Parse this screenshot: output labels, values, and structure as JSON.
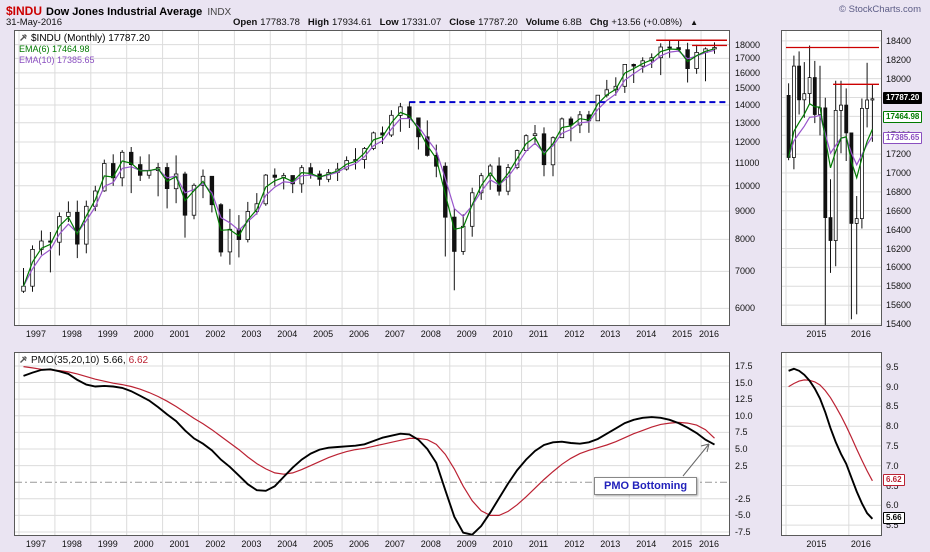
{
  "header": {
    "symbol": "$INDU",
    "name": "Dow Jones Industrial Average",
    "exchange": "INDX",
    "credit": "© StockCharts.com",
    "date": "31-May-2016",
    "quote": {
      "open_label": "Open",
      "open": "17783.78",
      "high_label": "High",
      "high": "17934.61",
      "low_label": "Low",
      "low": "17331.07",
      "close_label": "Close",
      "close": "17787.20",
      "volume_label": "Volume",
      "volume": "6.8B",
      "chg_label": "Chg",
      "chg": "+13.56 (+0.08%)",
      "chg_arrow": "▲"
    }
  },
  "price_panel": {
    "legend_title": "$INDU (Monthly) 17787.20",
    "legend_ema6": "EMA(6) 17464.98",
    "legend_ema10": "EMA(10) 17385.65"
  },
  "pmo_panel": {
    "label": "PMO(35,20,10)",
    "value_pmo": "5.66,",
    "value_signal": "6.62",
    "callout": "PMO Bottoming"
  },
  "inset_price": {
    "tag_close": "17787.20",
    "tag_ema6": "17464.98",
    "tag_ema10": "17385.65"
  },
  "inset_pmo": {
    "tag_signal": "6.62",
    "tag_pmo": "5.66"
  },
  "chart_data": [
    {
      "id": "price-main",
      "type": "candlestick",
      "scale": "log",
      "title": "$INDU (Monthly) 17787.20",
      "x_years": [
        "1997",
        "1998",
        "1999",
        "2000",
        "2001",
        "2002",
        "2003",
        "2004",
        "2005",
        "2006",
        "2007",
        "2008",
        "2009",
        "2010",
        "2011",
        "2012",
        "2013",
        "2014",
        "2015",
        "2016"
      ],
      "bars_per_year": 4,
      "ylim": [
        5600,
        19050
      ],
      "y_ticks": [
        "18000",
        "17000",
        "16000",
        "15000",
        "14000",
        "13000",
        "12000",
        "11000",
        "10000",
        "9000",
        "8000",
        "7000",
        "6000"
      ],
      "open_first": 6448,
      "bars": [
        [
          7100,
          6400,
          6583
        ],
        [
          7800,
          6430,
          7673
        ],
        [
          8300,
          7500,
          7945
        ],
        [
          8250,
          6970,
          7908
        ],
        [
          8950,
          7480,
          8800
        ],
        [
          9370,
          8600,
          8952
        ],
        [
          9400,
          7400,
          7843
        ],
        [
          9400,
          7550,
          9181
        ],
        [
          10000,
          9000,
          9786
        ],
        [
          11150,
          9750,
          10971
        ],
        [
          11400,
          10000,
          10337
        ],
        [
          11600,
          9976,
          11497
        ],
        [
          11750,
          9700,
          10922
        ],
        [
          11300,
          10200,
          10448
        ],
        [
          11400,
          10300,
          10651
        ],
        [
          11000,
          9570,
          10788
        ],
        [
          11000,
          9100,
          9879
        ],
        [
          11350,
          9300,
          10502
        ],
        [
          10600,
          8060,
          8847
        ],
        [
          10100,
          8700,
          10021
        ],
        [
          10700,
          9500,
          10404
        ],
        [
          10400,
          8950,
          9243
        ],
        [
          9300,
          7450,
          7592
        ],
        [
          9080,
          7200,
          8341
        ],
        [
          8850,
          7420,
          7992
        ],
        [
          9350,
          7900,
          8985
        ],
        [
          9700,
          8870,
          9275
        ],
        [
          10500,
          9200,
          10453
        ],
        [
          10750,
          10000,
          10357
        ],
        [
          10550,
          9850,
          10435
        ],
        [
          10400,
          9700,
          10080
        ],
        [
          10900,
          9710,
          10783
        ],
        [
          10990,
          10300,
          10504
        ],
        [
          10650,
          10000,
          10275
        ],
        [
          10720,
          10150,
          10569
        ],
        [
          11000,
          10200,
          10717
        ],
        [
          11300,
          10650,
          11109
        ],
        [
          11700,
          10700,
          11150
        ],
        [
          11750,
          10740,
          11679
        ],
        [
          12530,
          11600,
          12463
        ],
        [
          12800,
          11900,
          12354
        ],
        [
          13700,
          12250,
          13409
        ],
        [
          14120,
          12520,
          13896
        ],
        [
          14198,
          12720,
          13265
        ],
        [
          13280,
          11630,
          12263
        ],
        [
          13130,
          11290,
          11350
        ],
        [
          11870,
          10365,
          10851
        ],
        [
          11020,
          7450,
          8776
        ],
        [
          9090,
          6470,
          7609
        ],
        [
          8880,
          7500,
          8447
        ],
        [
          9920,
          8090,
          9712
        ],
        [
          10550,
          9430,
          10428
        ],
        [
          10955,
          9835,
          10857
        ],
        [
          11260,
          9600,
          9774
        ],
        [
          10950,
          9615,
          10788
        ],
        [
          11625,
          10710,
          11578
        ],
        [
          12390,
          11555,
          12320
        ],
        [
          12880,
          11860,
          12414
        ],
        [
          12750,
          10404,
          10913
        ],
        [
          12280,
          10405,
          12218
        ],
        [
          13290,
          12220,
          13212
        ],
        [
          13340,
          12035,
          12880
        ],
        [
          13650,
          12450,
          13437
        ],
        [
          13660,
          12470,
          13104
        ],
        [
          14585,
          13100,
          14579
        ],
        [
          15540,
          14440,
          14910
        ],
        [
          15710,
          14550,
          15130
        ],
        [
          16590,
          14720,
          16577
        ],
        [
          16630,
          15340,
          16458
        ],
        [
          17075,
          16015,
          16827
        ],
        [
          17350,
          16330,
          17043
        ],
        [
          18100,
          15855,
          17823
        ],
        [
          18290,
          17040,
          17776
        ],
        [
          18350,
          17465,
          17620
        ],
        [
          18140,
          15370,
          16285
        ],
        [
          17980,
          15940,
          17425
        ],
        [
          17790,
          15450,
          17685
        ],
        [
          18170,
          17335,
          17787
        ]
      ],
      "ema_colors": {
        "ema6": "#007a00",
        "ema10": "#9955cc"
      },
      "annotations": [
        {
          "type": "hline",
          "y": 14165,
          "from": 43.5,
          "to": "end",
          "color": "#0000cc",
          "dash": "6 4",
          "width": 2
        },
        {
          "type": "hline",
          "y": 18330,
          "from": 71,
          "to": "end",
          "color": "#cc0000",
          "dash": "",
          "width": 1.4
        },
        {
          "type": "hline",
          "y": 17940,
          "from": 75,
          "to": "end",
          "color": "#cc0000",
          "dash": "",
          "width": 1.4
        }
      ]
    },
    {
      "id": "pmo-main",
      "type": "line",
      "name": "PMO(35,20,10) 5.66, 6.62",
      "x_years": [
        "1997",
        "1998",
        "1999",
        "2000",
        "2001",
        "2002",
        "2003",
        "2004",
        "2005",
        "2006",
        "2007",
        "2008",
        "2009",
        "2010",
        "2011",
        "2012",
        "2013",
        "2014",
        "2015",
        "2016"
      ],
      "points_per_year": 4,
      "ylim": [
        -7.95,
        19.45
      ],
      "y_ticks": [
        "17.5",
        "15.0",
        "12.5",
        "10.0",
        "7.5",
        "5.0",
        "2.5",
        "-2.5",
        "-5.0",
        "-7.5"
      ],
      "zero_line": 0,
      "colors": {
        "pmo": "#000000",
        "signal": "#bb2233"
      },
      "values_pmo": [
        16.0,
        16.5,
        16.9,
        17.0,
        16.7,
        16.3,
        15.4,
        14.7,
        14.4,
        14.5,
        14.4,
        14.2,
        13.7,
        13.0,
        12.3,
        11.3,
        10.2,
        9.2,
        7.8,
        6.6,
        5.8,
        4.8,
        3.4,
        2.3,
        1.0,
        -0.3,
        -1.2,
        -1.3,
        -0.6,
        0.8,
        2.2,
        3.4,
        4.3,
        4.9,
        5.2,
        5.3,
        5.4,
        5.5,
        5.7,
        6.2,
        6.7,
        7.0,
        7.3,
        7.2,
        6.4,
        5.0,
        2.9,
        -1.2,
        -5.2,
        -7.6,
        -7.9,
        -6.6,
        -4.6,
        -2.4,
        -0.2,
        1.8,
        3.4,
        4.7,
        5.6,
        6.0,
        6.1,
        5.9,
        5.8,
        6.0,
        6.5,
        7.3,
        8.1,
        8.9,
        9.4,
        9.7,
        9.8,
        9.7,
        9.4,
        8.9,
        8.2,
        7.4,
        6.4,
        5.66
      ],
      "values_signal": [
        17.4,
        17.2,
        17.0,
        16.9,
        16.8,
        16.6,
        16.3,
        15.9,
        15.5,
        15.2,
        14.9,
        14.7,
        14.4,
        14.0,
        13.5,
        12.9,
        12.2,
        11.4,
        10.5,
        9.6,
        8.8,
        7.9,
        6.9,
        5.9,
        4.9,
        3.8,
        2.8,
        2.0,
        1.4,
        1.2,
        1.4,
        1.9,
        2.5,
        3.1,
        3.7,
        4.2,
        4.6,
        4.9,
        5.1,
        5.4,
        5.7,
        6.0,
        6.3,
        6.6,
        6.6,
        6.4,
        5.7,
        4.2,
        2.0,
        -0.6,
        -2.8,
        -4.3,
        -5.0,
        -5.0,
        -4.4,
        -3.4,
        -2.2,
        -0.9,
        0.4,
        1.6,
        2.7,
        3.6,
        4.3,
        4.8,
        5.2,
        5.6,
        6.1,
        6.7,
        7.3,
        7.8,
        8.3,
        8.7,
        8.9,
        9.0,
        8.9,
        8.6,
        7.9,
        6.62
      ]
    },
    {
      "id": "price-inset",
      "type": "candlestick",
      "scale": "linear",
      "x_years": [
        "2015",
        "2016"
      ],
      "year_start_indices": [
        0,
        12
      ],
      "ylim": [
        15390,
        18505
      ],
      "y_ticks": [
        "18400",
        "18200",
        "18000",
        "17800",
        "17600",
        "17400",
        "17200",
        "17000",
        "16800",
        "16600",
        "16400",
        "16200",
        "16000",
        "15800",
        "15600",
        "15400"
      ],
      "open_first": 17823,
      "bars": [
        [
          17951,
          17136,
          17165
        ],
        [
          18244,
          17040,
          18133
        ],
        [
          18289,
          17620,
          17776
        ],
        [
          18176,
          17585,
          17841
        ],
        [
          18351,
          17733,
          18011
        ],
        [
          18188,
          17529,
          17620
        ],
        [
          18137,
          17399,
          17690
        ],
        [
          17798,
          15370,
          16528
        ],
        [
          16934,
          15942,
          16285
        ],
        [
          17978,
          16013,
          17664
        ],
        [
          17978,
          17210,
          17720
        ],
        [
          17897,
          17128,
          17425
        ],
        [
          17406,
          15450,
          16466
        ],
        [
          16757,
          15503,
          16517
        ],
        [
          17790,
          16412,
          17685
        ],
        [
          18168,
          17484,
          17774
        ],
        [
          17935,
          17331,
          17787
        ]
      ],
      "ema_colors": {
        "ema6": "#007a00",
        "ema10": "#9955cc"
      },
      "annotations": [
        {
          "type": "hline",
          "y": 18330,
          "from": 0,
          "to": "end",
          "color": "#cc0000",
          "dash": "",
          "width": 1.3
        },
        {
          "type": "hline",
          "y": 17940,
          "from": 9,
          "to": "end",
          "color": "#cc0000",
          "dash": "",
          "width": 1.3
        }
      ]
    },
    {
      "id": "pmo-inset",
      "type": "line",
      "x_years": [
        "2015",
        "2016"
      ],
      "year_start_indices": [
        0,
        12
      ],
      "ylim": [
        5.25,
        9.85
      ],
      "y_ticks": [
        "9.5",
        "9.0",
        "8.5",
        "8.0",
        "7.5",
        "7.0",
        "6.5",
        "6.0",
        "5.5"
      ],
      "colors": {
        "pmo": "#000000",
        "signal": "#bb2233"
      },
      "values_pmo": [
        9.4,
        9.45,
        9.4,
        9.3,
        9.15,
        8.95,
        8.7,
        8.35,
        7.95,
        7.6,
        7.3,
        7.05,
        6.7,
        6.35,
        6.05,
        5.8,
        5.66
      ],
      "values_signal": [
        9.0,
        9.08,
        9.14,
        9.17,
        9.16,
        9.12,
        9.04,
        8.9,
        8.72,
        8.5,
        8.26,
        8.0,
        7.72,
        7.42,
        7.14,
        6.87,
        6.62
      ]
    }
  ]
}
